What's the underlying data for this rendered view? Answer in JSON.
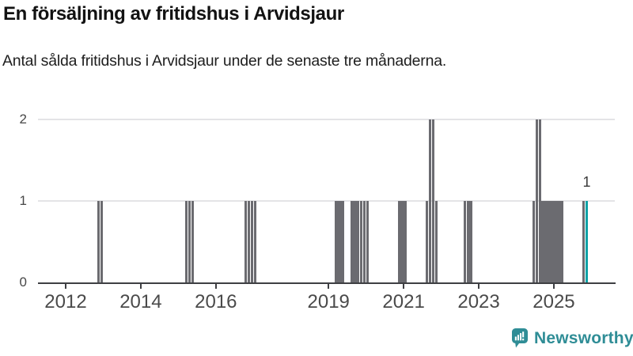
{
  "header": {
    "title": "En försäljning av fritidshus i Arvidsjaur",
    "subtitle": "Antal sålda fritidshus i Arvidsjaur under de senaste tre månaderna."
  },
  "branding": {
    "name": "Newsworthy",
    "icon": "newsworthy-speech-bubble-bar-chart-icon",
    "color": "#2F8D96"
  },
  "colors": {
    "bar_default": "#6B6B70",
    "bar_highlight": "#0AA2A6",
    "gridline": "#E4E4E6",
    "axis": "#3E3F43",
    "tick_label": "#4A4A4A"
  },
  "chart_data": {
    "type": "bar",
    "title": "En försäljning av fritidshus i Arvidsjaur",
    "xlabel": "",
    "ylabel": "",
    "x_unit": "month",
    "grid": "horizontal",
    "x_axis": {
      "tick_labels": [
        "2012",
        "2014",
        "2016",
        "2019",
        "2021",
        "2023",
        "2025"
      ]
    },
    "y_axis": {
      "ticks": [
        "0",
        "1",
        "2"
      ],
      "lim": [
        0,
        2
      ]
    },
    "highlight_month": "2025-11",
    "annotation": {
      "text": "1",
      "month": "2025-11"
    },
    "bars": [
      {
        "month": "2012-11",
        "value": 1
      },
      {
        "month": "2012-12",
        "value": 1
      },
      {
        "month": "2015-03",
        "value": 1
      },
      {
        "month": "2015-04",
        "value": 1
      },
      {
        "month": "2015-05",
        "value": 1
      },
      {
        "month": "2016-10",
        "value": 1
      },
      {
        "month": "2016-11",
        "value": 1
      },
      {
        "month": "2016-12",
        "value": 1
      },
      {
        "month": "2017-01",
        "value": 1
      },
      {
        "month": "2019-03",
        "value": 1
      },
      {
        "month": "2019-04",
        "value": 1
      },
      {
        "month": "2019-05",
        "value": 1
      },
      {
        "month": "2019-08",
        "value": 1
      },
      {
        "month": "2019-09",
        "value": 1
      },
      {
        "month": "2019-10",
        "value": 1
      },
      {
        "month": "2019-11",
        "value": 1
      },
      {
        "month": "2019-12",
        "value": 1
      },
      {
        "month": "2020-01",
        "value": 1
      },
      {
        "month": "2020-11",
        "value": 1
      },
      {
        "month": "2020-12",
        "value": 1
      },
      {
        "month": "2021-01",
        "value": 1
      },
      {
        "month": "2021-08",
        "value": 1
      },
      {
        "month": "2021-09",
        "value": 2
      },
      {
        "month": "2021-10",
        "value": 2
      },
      {
        "month": "2021-11",
        "value": 1
      },
      {
        "month": "2022-08",
        "value": 1
      },
      {
        "month": "2022-09",
        "value": 1
      },
      {
        "month": "2022-10",
        "value": 1
      },
      {
        "month": "2024-06",
        "value": 1
      },
      {
        "month": "2024-07",
        "value": 2
      },
      {
        "month": "2024-08",
        "value": 2
      },
      {
        "month": "2024-09",
        "value": 1
      },
      {
        "month": "2024-10",
        "value": 1
      },
      {
        "month": "2024-11",
        "value": 1
      },
      {
        "month": "2024-12",
        "value": 1
      },
      {
        "month": "2025-01",
        "value": 1
      },
      {
        "month": "2025-02",
        "value": 1
      },
      {
        "month": "2025-03",
        "value": 1
      },
      {
        "month": "2025-10",
        "value": 1
      },
      {
        "month": "2025-11",
        "value": 1
      }
    ]
  }
}
